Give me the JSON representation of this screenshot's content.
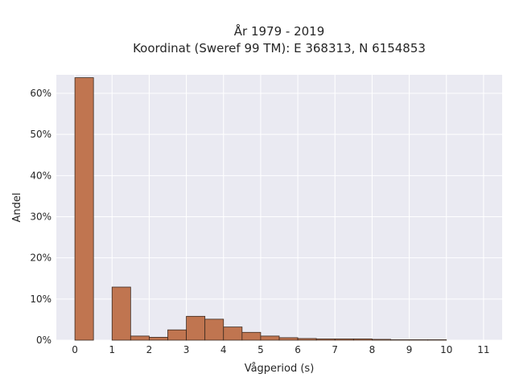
{
  "chart_data": {
    "type": "bar",
    "title": "År 1979 - 2019",
    "subtitle": "Koordinat (Sweref 99 TM): E 368313, N 6154853",
    "xlabel": "Vågperiod (s)",
    "ylabel": "Andel",
    "xlim": [
      -0.5,
      11.5
    ],
    "ylim": [
      0,
      0.645
    ],
    "x_ticks": [
      0,
      1,
      2,
      3,
      4,
      5,
      6,
      7,
      8,
      9,
      10,
      11
    ],
    "y_ticks": [
      0,
      0.1,
      0.2,
      0.3,
      0.4,
      0.5,
      0.6
    ],
    "y_tick_labels": [
      "0%",
      "10%",
      "20%",
      "30%",
      "40%",
      "50%",
      "60%"
    ],
    "bin_width": 0.5,
    "bins": [
      {
        "x0": 0.0,
        "value": 0.638
      },
      {
        "x0": 0.5,
        "value": 0.0
      },
      {
        "x0": 1.0,
        "value": 0.129
      },
      {
        "x0": 1.5,
        "value": 0.01
      },
      {
        "x0": 2.0,
        "value": 0.007
      },
      {
        "x0": 2.5,
        "value": 0.025
      },
      {
        "x0": 3.0,
        "value": 0.058
      },
      {
        "x0": 3.5,
        "value": 0.051
      },
      {
        "x0": 4.0,
        "value": 0.032
      },
      {
        "x0": 4.5,
        "value": 0.019
      },
      {
        "x0": 5.0,
        "value": 0.01
      },
      {
        "x0": 5.5,
        "value": 0.006
      },
      {
        "x0": 6.0,
        "value": 0.004
      },
      {
        "x0": 6.5,
        "value": 0.003
      },
      {
        "x0": 7.0,
        "value": 0.003
      },
      {
        "x0": 7.5,
        "value": 0.003
      },
      {
        "x0": 8.0,
        "value": 0.002
      },
      {
        "x0": 8.5,
        "value": 0.001
      },
      {
        "x0": 9.0,
        "value": 0.001
      },
      {
        "x0": 9.5,
        "value": 0.001
      }
    ],
    "grid": true,
    "colors": {
      "bar_fill": "#c07550",
      "bar_edge": "#3b2a20",
      "plot_background": "#eaeaf2",
      "grid": "#ffffff",
      "text": "#262626"
    }
  }
}
